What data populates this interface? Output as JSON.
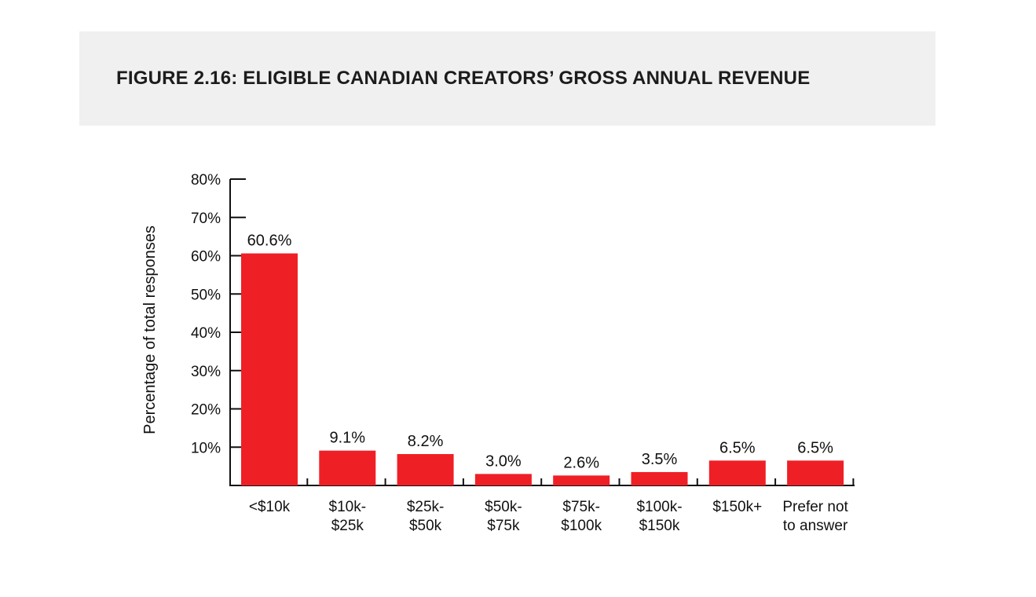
{
  "figure_title": "FIGURE 2.16: ELIGIBLE CANADIAN CREATORS’ GROSS ANNUAL REVENUE",
  "colors": {
    "bar": "#ee2026",
    "axis": "#111111",
    "title_band": "#f0f0f0"
  },
  "chart_data": {
    "type": "bar",
    "title": "FIGURE 2.16: ELIGIBLE CANADIAN CREATORS’ GROSS ANNUAL REVENUE",
    "xlabel": "",
    "ylabel": "Percentage of total responses",
    "ylim": [
      0,
      80
    ],
    "yticks": [
      10,
      20,
      30,
      40,
      50,
      60,
      70,
      80
    ],
    "ytick_labels": [
      "10%",
      "20%",
      "30%",
      "40%",
      "50%",
      "60%",
      "70%",
      "80%"
    ],
    "categories": [
      [
        "<$10k"
      ],
      [
        "$10k-",
        "$25k"
      ],
      [
        "$25k-",
        "$50k"
      ],
      [
        "$50k-",
        "$75k"
      ],
      [
        "$75k-",
        "$100k"
      ],
      [
        "$100k-",
        "$150k"
      ],
      [
        "$150k+"
      ],
      [
        "Prefer not",
        "to answer"
      ]
    ],
    "values": [
      60.6,
      9.1,
      8.2,
      3.0,
      2.6,
      3.5,
      6.5,
      6.5
    ],
    "value_labels": [
      "60.6%",
      "9.1%",
      "8.2%",
      "3.0%",
      "2.6%",
      "3.5%",
      "6.5%",
      "6.5%"
    ],
    "grid": false,
    "legend": "none"
  }
}
